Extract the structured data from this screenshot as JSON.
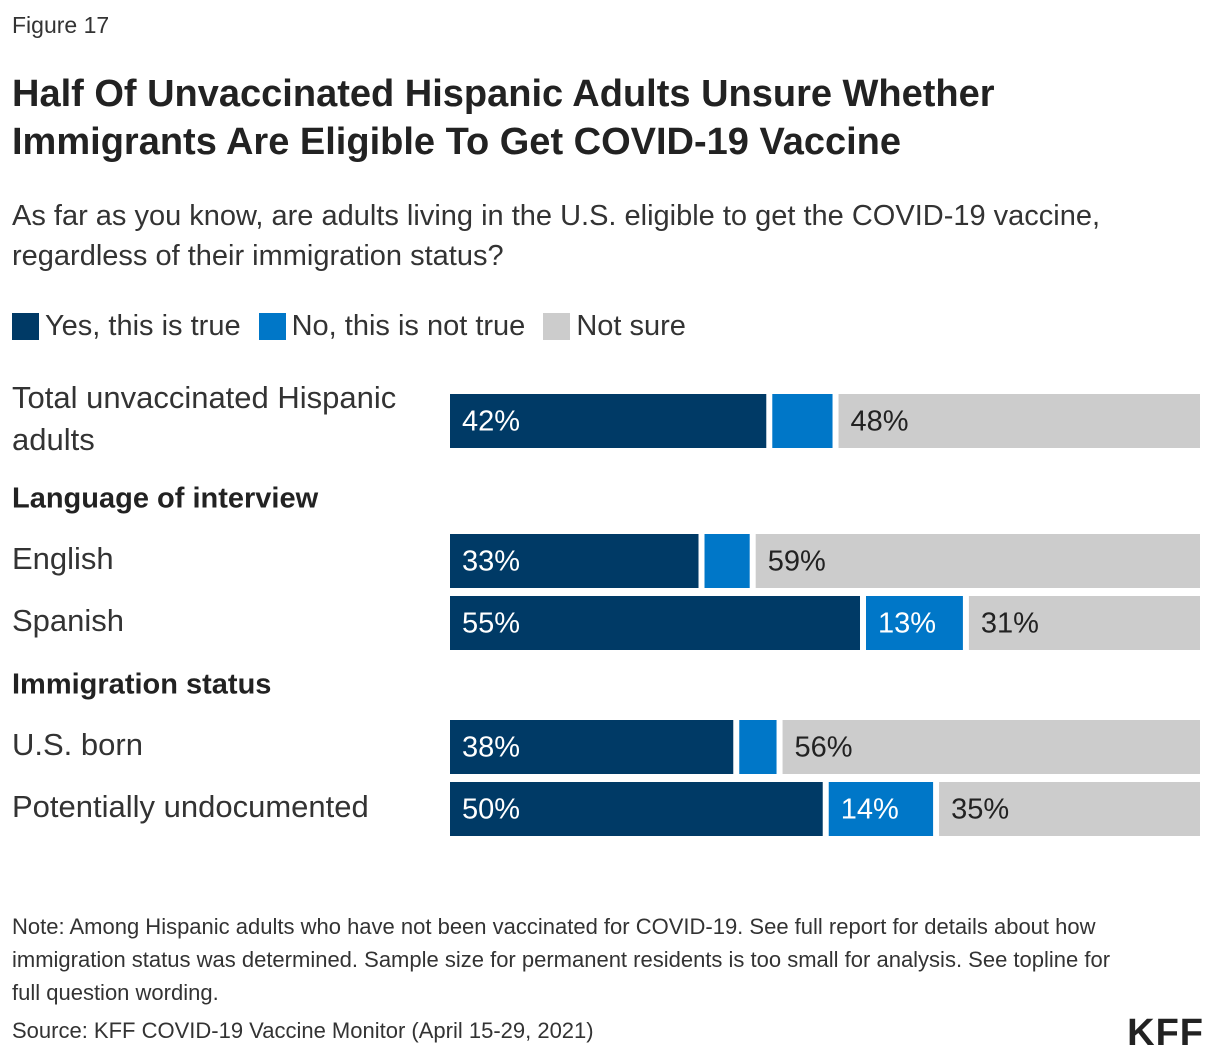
{
  "figure_label": "Figure 17",
  "title": "Half Of Unvaccinated Hispanic Adults Unsure Whether Immigrants Are Eligible To Get COVID-19 Vaccine",
  "subtitle": "As far as you know, are adults living in the U.S. eligible to get the COVID-19 vaccine, regardless of their immigration status?",
  "legend": [
    {
      "label": "Yes, this is true",
      "color": "#003a66"
    },
    {
      "label": "No, this is not true",
      "color": "#0077c8"
    },
    {
      "label": "Not sure",
      "color": "#cccccc"
    }
  ],
  "chart_data": {
    "type": "bar",
    "orientation": "horizontal",
    "stacked": true,
    "categories": [
      "Total unvaccinated Hispanic adults",
      "English",
      "Spanish",
      "U.S. born",
      "Potentially undocumented"
    ],
    "groups": [
      {
        "label": "",
        "categories": [
          "Total unvaccinated Hispanic adults"
        ]
      },
      {
        "label": "Language of interview",
        "categories": [
          "English",
          "Spanish"
        ]
      },
      {
        "label": "Immigration status",
        "categories": [
          "U.S. born",
          "Potentially undocumented"
        ]
      }
    ],
    "series": [
      {
        "name": "Yes, this is true",
        "color": "#003a66",
        "values": [
          42,
          33,
          55,
          38,
          50
        ],
        "labels": [
          "42%",
          "33%",
          "55%",
          "38%",
          "50%"
        ]
      },
      {
        "name": "No, this is not true",
        "color": "#0077c8",
        "values": [
          8,
          6,
          13,
          5,
          14
        ],
        "labels": [
          "",
          "",
          "13%",
          "",
          "14%"
        ]
      },
      {
        "name": "Not sure",
        "color": "#cccccc",
        "values": [
          48,
          59,
          31,
          56,
          35
        ],
        "labels": [
          "48%",
          "59%",
          "31%",
          "56%",
          "35%"
        ]
      }
    ],
    "xlim": [
      0,
      100
    ]
  },
  "note": "Note: Among Hispanic adults who have not been vaccinated for COVID-19. See full report for details about how immigration status was determined. Sample size for permanent residents is too small for analysis. See topline for full question wording.",
  "source": "Source: KFF COVID-19 Vaccine Monitor (April 15-29, 2021)",
  "logo_text": "KFF"
}
